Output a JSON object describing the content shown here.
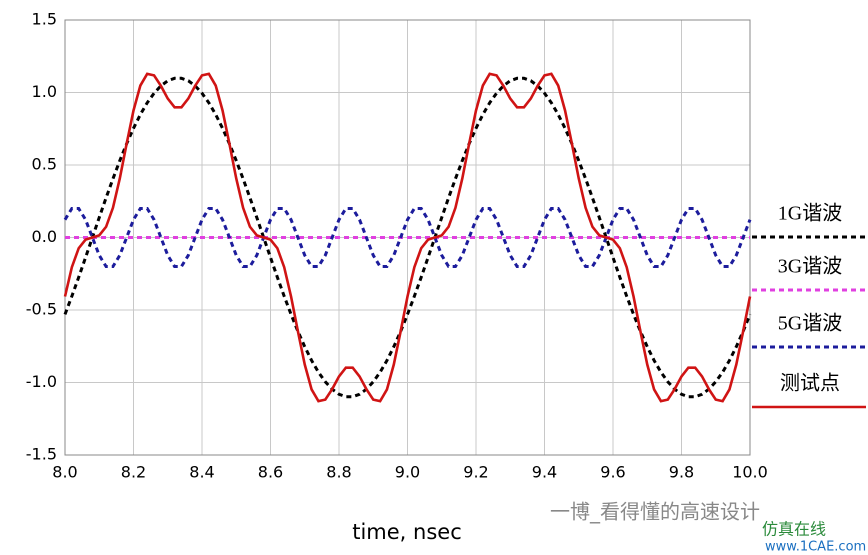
{
  "chart_data": {
    "type": "line",
    "xlabel": "time, nsec",
    "watermarks": [
      "一博_看得懂的高速设计",
      "仿真在线",
      "www.1CAE.com"
    ],
    "xlim": [
      8.0,
      10.0
    ],
    "ylim": [
      -1.5,
      1.5
    ],
    "xticks": [
      {
        "value": 8,
        "label": "8.0"
      },
      8.2,
      8.4,
      8.6,
      8.8,
      {
        "value": 9,
        "label": "9.0"
      },
      9.2,
      9.4,
      9.6,
      9.8,
      {
        "value": 10,
        "label": "10.0"
      }
    ],
    "yticks": [
      -1.5,
      {
        "value": -1,
        "label": "-1.0"
      },
      -0.5,
      {
        "value": 0,
        "label": "0.0"
      },
      0.5,
      {
        "value": 1,
        "label": "1.0"
      },
      1.5
    ],
    "grid": true,
    "x": [
      8.0,
      8.02,
      8.04,
      8.06,
      8.08,
      8.1,
      8.12,
      8.14,
      8.16,
      8.18,
      8.2,
      8.22,
      8.24,
      8.26,
      8.28,
      8.3,
      8.32,
      8.34,
      8.36,
      8.38,
      8.4,
      8.42,
      8.44,
      8.46,
      8.48,
      8.5,
      8.52,
      8.54,
      8.56,
      8.58,
      8.6,
      8.62,
      8.64,
      8.66,
      8.68,
      8.7,
      8.72,
      8.74,
      8.76,
      8.78,
      8.8,
      8.82,
      8.84,
      8.86,
      8.88,
      8.9,
      8.92,
      8.94,
      8.96,
      8.98,
      9.0,
      9.02,
      9.04,
      9.06,
      9.08,
      9.1,
      9.12,
      9.14,
      9.16,
      9.18,
      9.2,
      9.22,
      9.24,
      9.26,
      9.28,
      9.3,
      9.32,
      9.34,
      9.36,
      9.38,
      9.4,
      9.42,
      9.44,
      9.46,
      9.48,
      9.5,
      9.52,
      9.54,
      9.56,
      9.58,
      9.6,
      9.62,
      9.64,
      9.66,
      9.68,
      9.7,
      9.72,
      9.74,
      9.76,
      9.78,
      9.8,
      9.82,
      9.84,
      9.86,
      9.88,
      9.9,
      9.92,
      9.94,
      9.96,
      9.98,
      10.0
    ],
    "series": [
      {
        "name": "1G谐波",
        "color": "#000000",
        "dashed": true,
        "values": [
          -0.53,
          -0.405,
          -0.274,
          -0.138,
          0,
          0.138,
          0.274,
          0.405,
          0.53,
          0.647,
          0.753,
          0.848,
          0.929,
          0.995,
          1.046,
          1.081,
          1.098,
          1.098,
          1.081,
          1.046,
          0.995,
          0.929,
          0.848,
          0.753,
          0.647,
          0.53,
          0.405,
          0.274,
          0.138,
          0,
          -0.138,
          -0.274,
          -0.405,
          -0.53,
          -0.647,
          -0.753,
          -0.848,
          -0.929,
          -0.995,
          -1.046,
          -1.081,
          -1.098,
          -1.098,
          -1.081,
          -1.046,
          -0.995,
          -0.929,
          -0.848,
          -0.753,
          -0.647,
          -0.53,
          -0.405,
          -0.274,
          -0.138,
          0,
          0.138,
          0.274,
          0.405,
          0.53,
          0.647,
          0.753,
          0.848,
          0.929,
          0.995,
          1.046,
          1.081,
          1.098,
          1.098,
          1.081,
          1.046,
          0.995,
          0.929,
          0.848,
          0.753,
          0.647,
          0.53,
          0.405,
          0.274,
          0.138,
          0,
          -0.138,
          -0.274,
          -0.405,
          -0.53,
          -0.647,
          -0.753,
          -0.848,
          -0.929,
          -0.995,
          -1.046,
          -1.081,
          -1.098,
          -1.098,
          -1.081,
          -1.046,
          -0.995,
          -0.929,
          -0.848,
          -0.753,
          -0.647,
          -0.53
        ]
      },
      {
        "name": "3G谐波",
        "color": "#e040e0",
        "dashed": true,
        "values": [
          0,
          0,
          0,
          0,
          0,
          0,
          0,
          0,
          0,
          0,
          0,
          0,
          0,
          0,
          0,
          0,
          0,
          0,
          0,
          0,
          0,
          0,
          0,
          0,
          0,
          0,
          0,
          0,
          0,
          0,
          0,
          0,
          0,
          0,
          0,
          0,
          0,
          0,
          0,
          0,
          0,
          0,
          0,
          0,
          0,
          0,
          0,
          0,
          0,
          0,
          0,
          0,
          0,
          0,
          0,
          0,
          0,
          0,
          0,
          0,
          0,
          0,
          0,
          0,
          0,
          0,
          0,
          0,
          0,
          0,
          0,
          0,
          0,
          0,
          0,
          0,
          0,
          0,
          0,
          0,
          0,
          0,
          0,
          0,
          0,
          0,
          0,
          0,
          0,
          0,
          0,
          0,
          0,
          0,
          0,
          0,
          0,
          0,
          0,
          0,
          0
        ]
      },
      {
        "name": "5G谐波",
        "color": "#1c1c9c",
        "dashed": true,
        "values": [
          0.123,
          0.2,
          0.2,
          0.123,
          0,
          -0.123,
          -0.2,
          -0.2,
          -0.123,
          0,
          0.123,
          0.2,
          0.2,
          0.123,
          0,
          -0.123,
          -0.2,
          -0.2,
          -0.123,
          0,
          0.123,
          0.2,
          0.2,
          0.123,
          0,
          -0.123,
          -0.2,
          -0.2,
          -0.123,
          0,
          0.123,
          0.2,
          0.2,
          0.123,
          0,
          -0.123,
          -0.2,
          -0.2,
          -0.123,
          0,
          0.123,
          0.2,
          0.2,
          0.123,
          0,
          -0.123,
          -0.2,
          -0.2,
          -0.123,
          0,
          0.123,
          0.2,
          0.2,
          0.123,
          0,
          -0.123,
          -0.2,
          -0.2,
          -0.123,
          0,
          0.123,
          0.2,
          0.2,
          0.123,
          0,
          -0.123,
          -0.2,
          -0.2,
          -0.123,
          0,
          0.123,
          0.2,
          0.2,
          0.123,
          0,
          -0.123,
          -0.2,
          -0.2,
          -0.123,
          0,
          0.123,
          0.2,
          0.2,
          0.123,
          0,
          -0.123,
          -0.2,
          -0.2,
          -0.123,
          0,
          0.123,
          0.2,
          0.2,
          0.123,
          0,
          -0.123,
          -0.2,
          -0.2,
          -0.123,
          0,
          0.123
        ]
      },
      {
        "name": "测试点",
        "color": "#d01414",
        "dashed": false,
        "values": [
          -0.407,
          -0.205,
          -0.074,
          -0.015,
          0,
          0.015,
          0.074,
          0.205,
          0.407,
          0.647,
          0.876,
          1.048,
          1.129,
          1.118,
          1.046,
          0.958,
          0.898,
          0.898,
          0.958,
          1.046,
          1.118,
          1.129,
          1.048,
          0.876,
          0.647,
          0.407,
          0.205,
          0.074,
          0.015,
          0,
          -0.015,
          -0.074,
          -0.205,
          -0.407,
          -0.647,
          -0.876,
          -1.048,
          -1.129,
          -1.118,
          -1.046,
          -0.958,
          -0.898,
          -0.898,
          -0.958,
          -1.046,
          -1.118,
          -1.129,
          -1.048,
          -0.876,
          -0.647,
          -0.407,
          -0.205,
          -0.074,
          -0.015,
          0,
          0.015,
          0.074,
          0.205,
          0.407,
          0.647,
          0.876,
          1.048,
          1.129,
          1.118,
          1.046,
          0.958,
          0.898,
          0.898,
          0.958,
          1.046,
          1.118,
          1.129,
          1.048,
          0.876,
          0.647,
          0.407,
          0.205,
          0.074,
          0.015,
          0,
          -0.015,
          -0.074,
          -0.205,
          -0.407,
          -0.647,
          -0.876,
          -1.048,
          -1.129,
          -1.118,
          -1.046,
          -0.958,
          -0.898,
          -0.898,
          -0.958,
          -1.046,
          -1.118,
          -1.129,
          -1.048,
          -0.876,
          -0.647,
          -0.407
        ]
      }
    ]
  }
}
